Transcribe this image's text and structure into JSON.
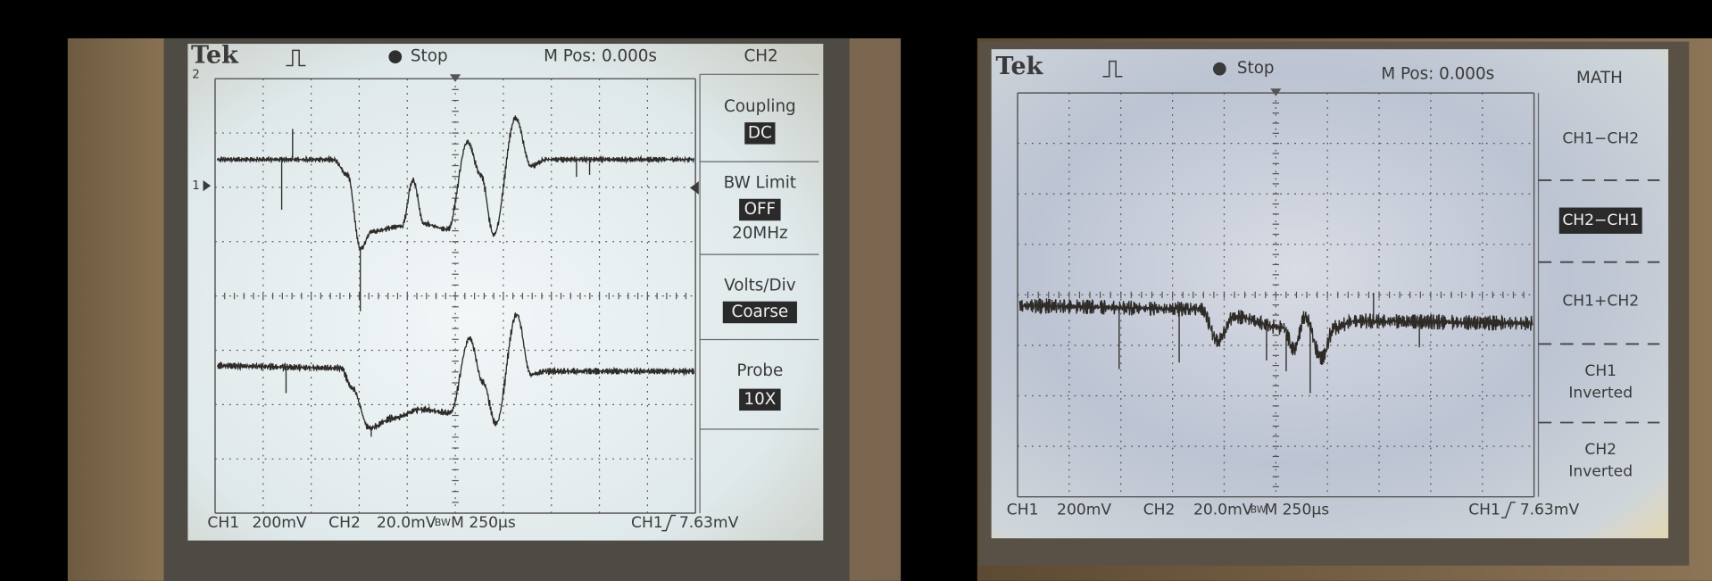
{
  "left_scope": {
    "header": {
      "brand": "Tek",
      "status": "Stop",
      "position": "M Pos: 0.000s",
      "menu_title": "CH2"
    },
    "markers": {
      "ch2": "2",
      "ch1": "1"
    },
    "menu": [
      {
        "label": "Coupling",
        "value": "DC"
      },
      {
        "label": "BW Limit",
        "value": "OFF",
        "extra": "20MHz"
      },
      {
        "label": "Volts/Div",
        "value": "Coarse"
      },
      {
        "label": "Probe",
        "value": "10X"
      }
    ],
    "footer": {
      "ch1": "CH1",
      "ch1_scale": "200mV",
      "ch2": "CH2",
      "ch2_scale": "20.0mV",
      "bw": "BW",
      "timebase": "M 250µs",
      "trigger_source": "CH1",
      "trigger_level": "7.63mV"
    }
  },
  "right_scope": {
    "header": {
      "brand": "Tek",
      "status": "Stop",
      "position": "M Pos: 0.000s",
      "menu_title": "MATH"
    },
    "menu": [
      {
        "label": "CH1−CH2",
        "selected": false
      },
      {
        "label": "CH2−CH1",
        "selected": true
      },
      {
        "label": "CH1+CH2",
        "selected": false
      },
      {
        "label": "CH1",
        "sublabel": "Inverted",
        "selected": false
      },
      {
        "label": "CH2",
        "sublabel": "Inverted",
        "selected": false
      }
    ],
    "footer": {
      "ch1": "CH1",
      "ch1_scale": "200mV",
      "ch2": "CH2",
      "ch2_scale": "20.0mV",
      "bw": "BW",
      "timebase": "M 250µs",
      "trigger_source": "CH1",
      "trigger_level": "7.63mV"
    }
  }
}
